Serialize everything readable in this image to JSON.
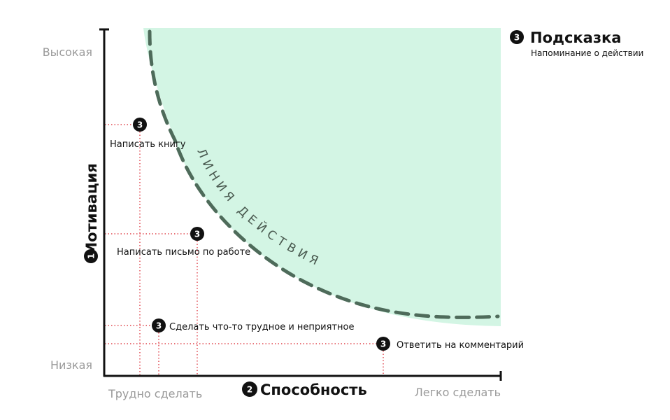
{
  "colors": {
    "area": "#d3f5e4",
    "curve": "#4e6b5a",
    "guide": "#d9212b",
    "axis": "#111111",
    "badge": "#111111",
    "muted": "#9a9a9a"
  },
  "y_axis": {
    "badge": "1",
    "title": "Мотивация",
    "high_label": "Высокая",
    "low_label": "Низкая"
  },
  "x_axis": {
    "badge": "2",
    "title": "Способность",
    "hard_label": "Трудно сделать",
    "easy_label": "Легко сделать"
  },
  "hint": {
    "badge": "3",
    "title": "Подсказка",
    "subtitle": "Напоминание о действии"
  },
  "action_line": {
    "label": "ЛИНИЯ ДЕЙСТВИЯ"
  },
  "tasks": [
    {
      "badge": "3",
      "label": "Написать книгу"
    },
    {
      "badge": "3",
      "label": "Написать письмо по работе"
    },
    {
      "badge": "3",
      "label": "Сделать что-то трудное и неприятное"
    },
    {
      "badge": "3",
      "label": "Ответить на комментарий"
    }
  ]
}
